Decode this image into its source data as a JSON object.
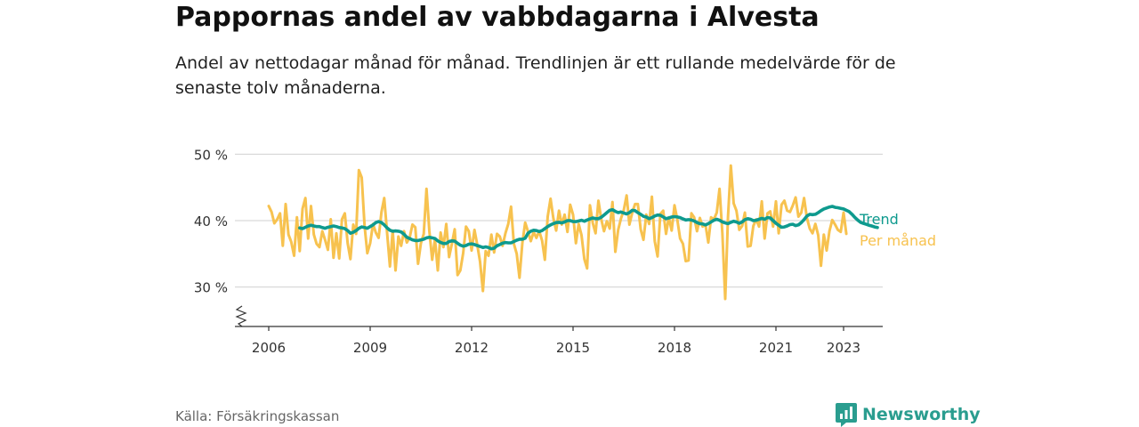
{
  "title": "Pappornas andel av vabbdagarna i Alvesta",
  "subtitle": "Andel av nettodagar månad för månad. Trendlinjen är ett rullande medelvärde för de senaste tolv månaderna.",
  "source": "Källa: Försäkringskassan",
  "brand": {
    "name": "Newsworthy",
    "icon": "bar-chart-speech-bubble-icon"
  },
  "colors": {
    "trend": "#0e9a8e",
    "monthly": "#f7c24f",
    "grid": "#d9d9d9",
    "axis": "#333333",
    "brand": "#2a9d8f"
  },
  "chart_data": {
    "type": "line",
    "title": "Pappornas andel av vabbdagarna i Alvesta",
    "xlabel": "",
    "ylabel": "",
    "ylim": [
      25,
      50
    ],
    "xlim": [
      2005.5,
      2024.3
    ],
    "yticks": [
      30,
      40,
      50
    ],
    "ytick_labels": [
      "30 %",
      "40 %",
      "50 %"
    ],
    "xticks": [
      2006,
      2009,
      2012,
      2015,
      2018,
      2021,
      2023
    ],
    "xtick_labels": [
      "2006",
      "2009",
      "2012",
      "2015",
      "2018",
      "2021",
      "2023"
    ],
    "grid": true,
    "axis_break": true,
    "series": [
      {
        "name": "Per månad",
        "color": "#f7c24f",
        "x_start": 2006.0,
        "x_step": 0.08333,
        "values": [
          42.2,
          41.3,
          39.6,
          40.2,
          41.1,
          36.2,
          42.5,
          37.9,
          36.8,
          34.7,
          40.5,
          35.4,
          41.8,
          43.4,
          37.3,
          42.2,
          37.9,
          36.5,
          36.0,
          38.4,
          37.1,
          35.6,
          40.2,
          34.4,
          38.1,
          34.3,
          40.2,
          41.1,
          36.6,
          34.2,
          39.4,
          38.0,
          47.6,
          46.5,
          39.2,
          35.1,
          36.6,
          39.5,
          38.2,
          37.4,
          41.3,
          43.4,
          38.2,
          33.1,
          38.5,
          32.5,
          37.6,
          36.2,
          38.4,
          36.7,
          37.4,
          39.4,
          39.0,
          33.5,
          36.6,
          38.0,
          44.8,
          38.4,
          34.1,
          37.2,
          32.5,
          38.2,
          36.0,
          39.5,
          34.5,
          36.5,
          38.7,
          31.8,
          32.5,
          35.1,
          39.1,
          38.4,
          35.5,
          38.6,
          36.4,
          33.8,
          29.4,
          35.4,
          34.7,
          37.9,
          35.2,
          38.0,
          37.6,
          36.2,
          38.1,
          39.5,
          42.1,
          36.5,
          35.0,
          31.4,
          36.6,
          39.7,
          38.4,
          36.9,
          38.3,
          37.4,
          38.4,
          37.0,
          34.1,
          40.6,
          43.3,
          40.4,
          38.5,
          41.5,
          39.4,
          40.9,
          38.3,
          42.4,
          40.9,
          36.6,
          39.5,
          37.8,
          34.2,
          32.8,
          42.3,
          39.6,
          38.1,
          43.0,
          40.2,
          38.4,
          39.9,
          38.8,
          42.8,
          35.3,
          38.6,
          40.3,
          41.6,
          43.8,
          39.4,
          41.2,
          42.5,
          42.5,
          38.7,
          37.1,
          40.9,
          39.5,
          43.6,
          36.9,
          34.6,
          41.0,
          41.5,
          38.0,
          40.5,
          38.5,
          42.3,
          40.2,
          37.3,
          36.5,
          33.9,
          34.0,
          41.1,
          40.5,
          38.4,
          40.4,
          39.1,
          39.4,
          36.7,
          40.5,
          40.2,
          41.2,
          44.8,
          38.1,
          28.2,
          40.5,
          48.3,
          42.6,
          41.5,
          38.6,
          39.2,
          41.2,
          36.1,
          36.2,
          39.2,
          40.2,
          39.1,
          42.9,
          37.3,
          41.1,
          41.4,
          39.1,
          42.9,
          38.1,
          42.4,
          43.0,
          41.5,
          41.3,
          42.3,
          43.5,
          40.6,
          41.2,
          43.4,
          40.4,
          38.8,
          38.1,
          39.5,
          37.8,
          33.2,
          37.9,
          35.5,
          38.4,
          40.1,
          39.4,
          38.6,
          38.3,
          41.2,
          38.0
        ]
      },
      {
        "name": "Trend",
        "color": "#0e9a8e",
        "x_start": 2006.9167,
        "x_step": 0.08333,
        "values": [
          38.9,
          38.8,
          39.0,
          39.2,
          39.3,
          39.2,
          39.1,
          39.1,
          38.95,
          38.85,
          39.0,
          39.1,
          39.2,
          39.1,
          38.95,
          38.9,
          38.8,
          38.5,
          38.1,
          38.25,
          38.5,
          38.85,
          39.05,
          38.95,
          38.85,
          39.1,
          39.35,
          39.7,
          39.85,
          39.7,
          39.35,
          38.9,
          38.55,
          38.4,
          38.45,
          38.4,
          38.3,
          37.95,
          37.5,
          37.3,
          37.1,
          37.0,
          37.0,
          37.1,
          37.2,
          37.4,
          37.5,
          37.4,
          37.3,
          36.95,
          36.7,
          36.55,
          36.55,
          36.85,
          36.95,
          36.9,
          36.6,
          36.3,
          36.15,
          36.25,
          36.45,
          36.5,
          36.4,
          36.25,
          36.1,
          35.95,
          36.05,
          35.95,
          35.75,
          35.85,
          36.2,
          36.4,
          36.6,
          36.7,
          36.65,
          36.65,
          36.85,
          37.05,
          37.2,
          37.2,
          37.35,
          38.1,
          38.4,
          38.55,
          38.5,
          38.35,
          38.5,
          38.8,
          39.1,
          39.35,
          39.55,
          39.7,
          39.75,
          39.65,
          39.8,
          40.0,
          40.0,
          39.85,
          39.85,
          39.95,
          40.05,
          39.9,
          40.1,
          40.25,
          40.4,
          40.3,
          40.3,
          40.5,
          40.85,
          41.2,
          41.55,
          41.65,
          41.4,
          41.2,
          41.3,
          41.15,
          41.0,
          41.2,
          41.55,
          41.5,
          41.2,
          40.95,
          40.65,
          40.55,
          40.3,
          40.45,
          40.7,
          40.85,
          40.8,
          40.55,
          40.3,
          40.4,
          40.55,
          40.6,
          40.55,
          40.45,
          40.25,
          40.1,
          40.15,
          40.1,
          39.95,
          39.7,
          39.55,
          39.5,
          39.35,
          39.55,
          39.8,
          40.05,
          40.2,
          40.05,
          39.8,
          39.65,
          39.55,
          39.75,
          39.9,
          39.8,
          39.6,
          39.8,
          40.15,
          40.3,
          40.2,
          40.0,
          40.05,
          40.2,
          40.35,
          40.2,
          40.45,
          40.4,
          40.0,
          39.6,
          39.3,
          39.0,
          39.05,
          39.2,
          39.4,
          39.45,
          39.25,
          39.35,
          39.7,
          40.15,
          40.7,
          40.95,
          40.9,
          40.95,
          41.2,
          41.5,
          41.75,
          41.9,
          42.05,
          42.15,
          42.0,
          41.95,
          41.85,
          41.75,
          41.55,
          41.35,
          40.95,
          40.5,
          40.1,
          39.75,
          39.6,
          39.45,
          39.3,
          39.2,
          39.05,
          38.95
        ]
      }
    ],
    "legend": {
      "placement": "right-end",
      "entries": [
        "Trend",
        "Per månad"
      ]
    }
  }
}
